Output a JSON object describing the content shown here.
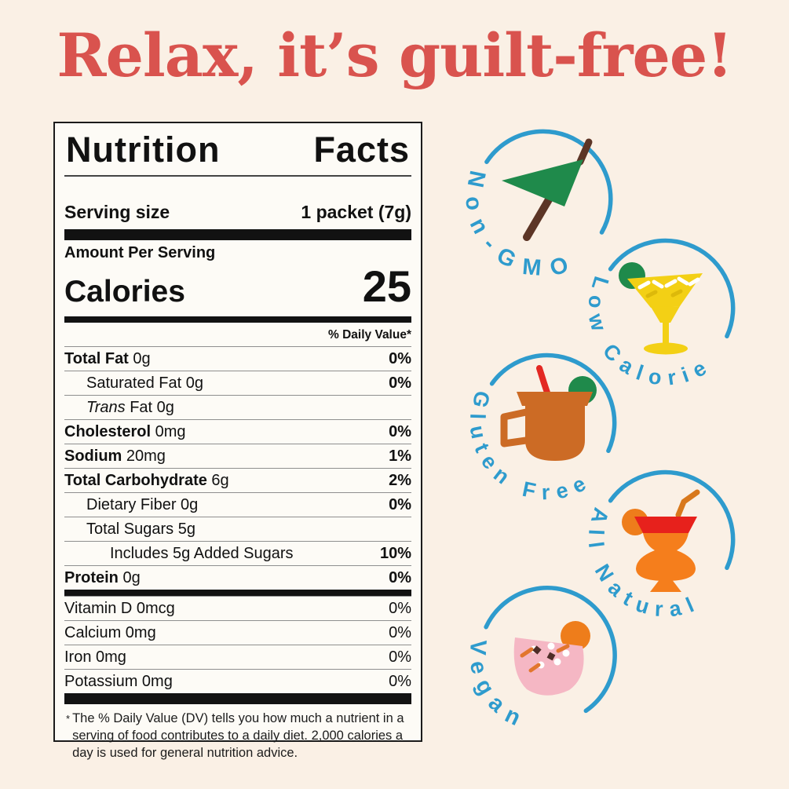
{
  "headline": {
    "text": "Relax, it’s guilt-free!"
  },
  "nutrition_label": {
    "title": "Nutrition Facts",
    "title_words": [
      "Nutrition",
      "Facts"
    ],
    "serving_size_label": "Serving size",
    "serving_size_value": "1 packet (7g)",
    "amount_per_serving": "Amount Per Serving",
    "calories_label": "Calories",
    "calories_value": "25",
    "daily_value_header": "% Daily Value*",
    "rows": [
      {
        "name_bold": "Total Fat",
        "name": " 0g",
        "dv": "0%",
        "dv_bold": true,
        "indent": 0
      },
      {
        "name": "Saturated Fat 0g",
        "dv": "0%",
        "dv_bold": true,
        "indent": 1
      },
      {
        "name_italic": "Trans",
        "name": " Fat 0g",
        "dv": "",
        "indent": 1
      },
      {
        "name_bold": "Cholesterol",
        "name": " 0mg",
        "dv": "0%",
        "dv_bold": true,
        "indent": 0
      },
      {
        "name_bold": "Sodium",
        "name": " 20mg",
        "dv": "1%",
        "dv_bold": true,
        "indent": 0
      },
      {
        "name_bold": "Total Carbohydrate",
        "name": " 6g",
        "dv": "2%",
        "dv_bold": true,
        "indent": 0
      },
      {
        "name": "Dietary Fiber 0g",
        "dv": "0%",
        "dv_bold": true,
        "indent": 1
      },
      {
        "name": "Total Sugars 5g",
        "dv": "",
        "indent": 1
      },
      {
        "name": "Includes 5g Added Sugars",
        "dv": "10%",
        "dv_bold": true,
        "indent": 2
      },
      {
        "name_bold": "Protein",
        "name": " 0g",
        "dv": "0%",
        "dv_bold": true,
        "indent": 0
      }
    ],
    "vitamin_rows": [
      {
        "name": "Vitamin D 0mcg",
        "dv": "0%"
      },
      {
        "name": "Calcium 0mg",
        "dv": "0%"
      },
      {
        "name": "Iron 0mg",
        "dv": "0%"
      },
      {
        "name": "Potassium 0mg",
        "dv": "0%"
      }
    ],
    "footnote_marker": "*",
    "footnote": "The % Daily Value (DV) tells you how much a nutrient in a serving of food contributes to a daily diet. 2,000 calories a day is used for general nutrition advice."
  },
  "badges": [
    {
      "label": "Non-GMO",
      "icon": "cocktail-umbrella-icon"
    },
    {
      "label": "Low Calorie",
      "icon": "margarita-glass-icon"
    },
    {
      "label": "Gluten Free",
      "icon": "mule-mug-icon"
    },
    {
      "label": "All Natural",
      "icon": "tropical-drink-icon"
    },
    {
      "label": "Vegan",
      "icon": "pink-cocktail-icon"
    }
  ],
  "colors": {
    "page_bg": "#faf0e5",
    "headline_red": "#d9534e",
    "badge_blue": "#2e9bcd",
    "label_bg": "#fdfbf6",
    "umbrella_green": "#1f8a4b",
    "margarita_yellow": "#f3d015",
    "mug_copper": "#cc6b25",
    "drink_orange": "#f57e1c",
    "accent_red": "#e7211c",
    "cocktail_pink": "#f5b7c4",
    "stick_brown": "#5c3526",
    "orange_slice": "#ee7d1b"
  }
}
